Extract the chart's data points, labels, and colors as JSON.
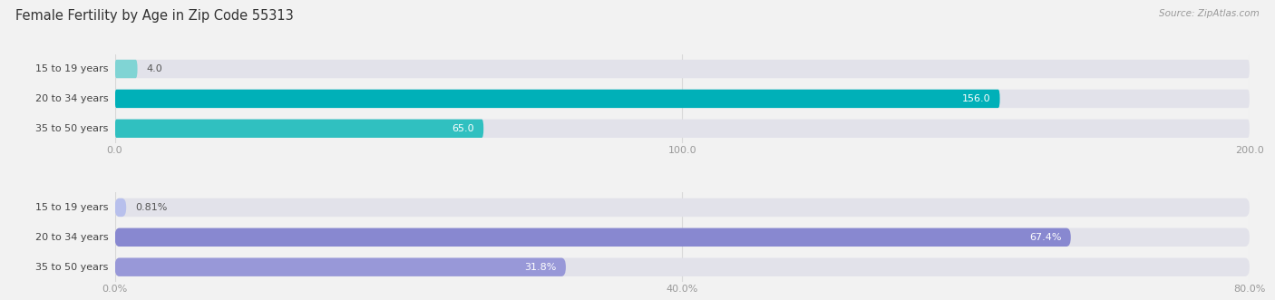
{
  "title": "Female Fertility by Age in Zip Code 55313",
  "source": "Source: ZipAtlas.com",
  "top_chart": {
    "categories": [
      "15 to 19 years",
      "20 to 34 years",
      "35 to 50 years"
    ],
    "values": [
      4.0,
      156.0,
      65.0
    ],
    "bar_colors": [
      "#80d4d4",
      "#00b0b8",
      "#30c0c0"
    ],
    "xlim": [
      0,
      200
    ],
    "xticks": [
      0.0,
      100.0,
      200.0
    ],
    "xtick_labels": [
      "0.0",
      "100.0",
      "200.0"
    ],
    "pct": false
  },
  "bottom_chart": {
    "categories": [
      "15 to 19 years",
      "20 to 34 years",
      "35 to 50 years"
    ],
    "values": [
      0.81,
      67.4,
      31.8
    ],
    "bar_colors": [
      "#b8c0ec",
      "#8888d0",
      "#9898d8"
    ],
    "xlim": [
      0,
      80
    ],
    "xticks": [
      0.0,
      40.0,
      80.0
    ],
    "xtick_labels": [
      "0.0%",
      "40.0%",
      "80.0%"
    ],
    "pct": true
  },
  "bar_height": 0.62,
  "label_fontsize": 8.0,
  "tick_fontsize": 8.0,
  "title_fontsize": 10.5,
  "bg_color": "#f2f2f2",
  "bar_bg_color": "#e2e2ea",
  "label_color_inside": "#ffffff",
  "label_color_outside": "#555555",
  "axis_label_color": "#999999",
  "category_label_color": "#444444",
  "grid_color": "#d8d8d8"
}
